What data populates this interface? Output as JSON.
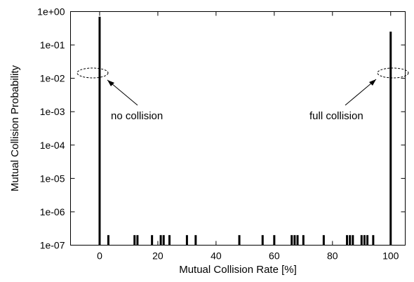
{
  "chart_data": {
    "type": "bar",
    "xlabel": "Mutual Collision Rate [%]",
    "ylabel": "Mutual Collision Probability",
    "xlim": [
      -10,
      105
    ],
    "ylim": [
      1e-07,
      1
    ],
    "yscale": "log",
    "x_ticks": [
      0,
      20,
      40,
      60,
      80,
      100
    ],
    "x_tick_labels": [
      "0",
      "20",
      "40",
      "60",
      "80",
      "100"
    ],
    "y_ticks": [
      1e-07,
      1e-06,
      1e-05,
      0.0001,
      0.001,
      0.01,
      0.1,
      1
    ],
    "y_tick_labels": [
      "1e-07",
      "1e-06",
      "1e-05",
      "1e-04",
      "1e-03",
      "1e-02",
      "1e-01",
      "1e+00"
    ],
    "grid": false,
    "legend": "none",
    "bar_color": "#000000",
    "points": [
      {
        "x": 0,
        "y": 0.7
      },
      {
        "x": 3,
        "y": 2e-07
      },
      {
        "x": 12,
        "y": 2e-07
      },
      {
        "x": 13,
        "y": 2e-07
      },
      {
        "x": 18,
        "y": 2e-07
      },
      {
        "x": 21,
        "y": 2e-07
      },
      {
        "x": 22,
        "y": 2e-07
      },
      {
        "x": 24,
        "y": 2e-07
      },
      {
        "x": 30,
        "y": 2e-07
      },
      {
        "x": 33,
        "y": 2e-07
      },
      {
        "x": 48,
        "y": 2e-07
      },
      {
        "x": 56,
        "y": 2e-07
      },
      {
        "x": 60,
        "y": 2e-07
      },
      {
        "x": 66,
        "y": 2e-07
      },
      {
        "x": 67,
        "y": 2e-07
      },
      {
        "x": 68,
        "y": 2e-07
      },
      {
        "x": 70,
        "y": 2e-07
      },
      {
        "x": 77,
        "y": 2e-07
      },
      {
        "x": 85,
        "y": 2e-07
      },
      {
        "x": 86,
        "y": 2e-07
      },
      {
        "x": 87,
        "y": 2e-07
      },
      {
        "x": 90,
        "y": 2e-07
      },
      {
        "x": 91,
        "y": 2e-07
      },
      {
        "x": 92,
        "y": 2e-07
      },
      {
        "x": 94,
        "y": 2e-07
      },
      {
        "x": 100,
        "y": 0.25
      }
    ],
    "annotations": [
      {
        "text": "no collision",
        "target_x": 0,
        "target_y": 0.01
      },
      {
        "text": "full collision",
        "target_x": 100,
        "target_y": 0.01
      }
    ]
  }
}
